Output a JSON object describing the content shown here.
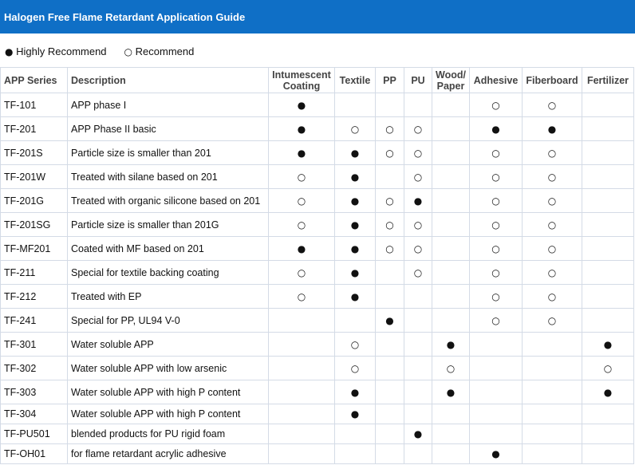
{
  "header": {
    "title": "Halogen Free Flame Retardant Application Guide"
  },
  "legend": [
    {
      "symbol": "●",
      "label": "Highly Recommend"
    },
    {
      "symbol": "○",
      "label": "Recommend"
    }
  ],
  "table": {
    "columns": [
      "APP Series",
      "Description",
      "Intumescent\nCoating",
      "Textile",
      "PP",
      "PU",
      "Wood/\nPaper",
      "Adhesive",
      "Fiberboard",
      "Fertilizer"
    ],
    "rows": [
      [
        "TF-101",
        "APP phase I",
        "●",
        null,
        null,
        null,
        null,
        "○",
        "○",
        null
      ],
      [
        "TF-201",
        "APP Phase II basic",
        "●",
        "○",
        "○",
        "○",
        null,
        "●",
        "●",
        null
      ],
      [
        "TF-201S",
        "Particle size is smaller than 201",
        "●",
        "●",
        "○",
        "○",
        null,
        "○",
        "○",
        null
      ],
      [
        "TF-201W",
        "Treated with silane based on 201",
        "○",
        "●",
        null,
        "○",
        null,
        "○",
        "○",
        null
      ],
      [
        "TF-201G",
        "Treated with organic silicone based on 201",
        "○",
        "●",
        "○",
        "●",
        null,
        "○",
        "○",
        null
      ],
      [
        "TF-201SG",
        "Particle size is smaller than 201G",
        "○",
        "●",
        "○",
        "○",
        null,
        "○",
        "○",
        null
      ],
      [
        "TF-MF201",
        "Coated with MF based on 201",
        "●",
        "●",
        "○",
        "○",
        null,
        "○",
        "○",
        null
      ],
      [
        "TF-211",
        "Special for textile backing coating",
        "○",
        "●",
        null,
        "○",
        null,
        "○",
        "○",
        null
      ],
      [
        "TF-212",
        "Treated with EP",
        "○",
        "●",
        null,
        null,
        null,
        "○",
        "○",
        null
      ],
      [
        "TF-241",
        "Special for PP, UL94 V-0",
        null,
        null,
        "●",
        null,
        null,
        "○",
        "○",
        null
      ],
      [
        "TF-301",
        "Water soluble APP",
        null,
        "○",
        null,
        null,
        "●",
        null,
        null,
        "●"
      ],
      [
        "TF-302",
        "Water soluble APP with low arsenic",
        null,
        "○",
        null,
        null,
        "○",
        null,
        null,
        "○"
      ],
      [
        "TF-303",
        "Water soluble APP with high P content",
        null,
        "●",
        null,
        null,
        "●",
        null,
        null,
        "●"
      ],
      [
        "TF-304",
        "Water soluble APP with high P content",
        null,
        "●",
        null,
        null,
        null,
        null,
        null,
        null
      ],
      [
        "TF-PU501",
        "blended products for PU rigid foam",
        null,
        null,
        null,
        "●",
        null,
        null,
        null,
        null
      ],
      [
        "TF-OH01",
        "for flame retardant acrylic adhesive",
        null,
        null,
        null,
        null,
        null,
        "●",
        null,
        null
      ]
    ]
  }
}
